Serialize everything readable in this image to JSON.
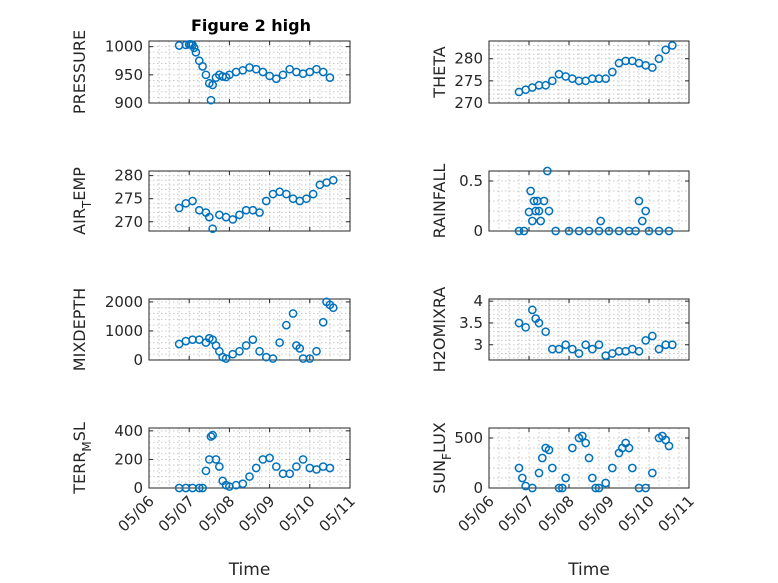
{
  "title": "Figure 2 high",
  "chart_data": [
    {
      "type": "scatter",
      "ylabel": "PRESSURE",
      "ylim": [
        900,
        1010
      ],
      "yticks": [
        900,
        950,
        1000
      ],
      "ytick_labels": [
        "900",
        "950",
        "1000"
      ],
      "x": [
        "05/06 18:00",
        "05/06 22:00",
        "05/07 00:00",
        "05/07 01:00",
        "05/07 02:00",
        "05/07 03:00",
        "05/07 04:00",
        "05/07 06:00",
        "05/07 08:00",
        "05/07 10:00",
        "05/07 12:00",
        "05/07 13:00",
        "05/07 14:00",
        "05/07 16:00",
        "05/07 18:00",
        "05/07 20:00",
        "05/07 22:00",
        "05/08 00:00",
        "05/08 04:00",
        "05/08 08:00",
        "05/08 12:00",
        "05/08 16:00",
        "05/08 20:00",
        "05/09 00:00",
        "05/09 04:00",
        "05/09 08:00",
        "05/09 12:00",
        "05/09 16:00",
        "05/09 20:00",
        "05/10 00:00",
        "05/10 04:00",
        "05/10 08:00",
        "05/10 12:00"
      ],
      "y": [
        1002,
        1003,
        1004,
        1004,
        1003,
        998,
        990,
        975,
        965,
        950,
        935,
        905,
        932,
        945,
        950,
        947,
        946,
        950,
        955,
        958,
        963,
        960,
        955,
        948,
        943,
        950,
        960,
        955,
        952,
        955,
        960,
        955,
        945
      ]
    },
    {
      "type": "scatter",
      "ylabel": "THETA",
      "ylim": [
        270,
        284
      ],
      "yticks": [
        270,
        275,
        280
      ],
      "ytick_labels": [
        "270",
        "275",
        "280"
      ],
      "x": [
        "05/06 18:00",
        "05/06 22:00",
        "05/07 02:00",
        "05/07 06:00",
        "05/07 10:00",
        "05/07 14:00",
        "05/07 18:00",
        "05/07 22:00",
        "05/08 02:00",
        "05/08 06:00",
        "05/08 10:00",
        "05/08 14:00",
        "05/08 18:00",
        "05/08 22:00",
        "05/09 02:00",
        "05/09 06:00",
        "05/09 10:00",
        "05/09 14:00",
        "05/09 18:00",
        "05/09 22:00",
        "05/10 02:00",
        "05/10 06:00",
        "05/10 10:00",
        "05/10 14:00"
      ],
      "y": [
        272.5,
        273,
        273.5,
        274,
        274,
        275,
        276.5,
        276,
        275.5,
        275,
        275,
        275.5,
        275.5,
        275.5,
        277,
        279,
        279.5,
        279.5,
        279,
        278.5,
        278,
        280,
        282,
        283
      ]
    },
    {
      "type": "scatter",
      "ylabel": "AIR_TEMP",
      "ylim": [
        268,
        281
      ],
      "yticks": [
        270,
        275,
        280
      ],
      "ytick_labels": [
        "270",
        "275",
        "280"
      ],
      "x": [
        "05/06 18:00",
        "05/06 22:00",
        "05/07 02:00",
        "05/07 06:00",
        "05/07 10:00",
        "05/07 12:00",
        "05/07 14:00",
        "05/07 18:00",
        "05/07 22:00",
        "05/08 02:00",
        "05/08 06:00",
        "05/08 10:00",
        "05/08 14:00",
        "05/08 18:00",
        "05/08 22:00",
        "05/09 02:00",
        "05/09 06:00",
        "05/09 10:00",
        "05/09 14:00",
        "05/09 18:00",
        "05/09 22:00",
        "05/10 02:00",
        "05/10 06:00",
        "05/10 10:00",
        "05/10 14:00"
      ],
      "y": [
        273,
        274,
        274.5,
        272.5,
        272,
        271,
        268.5,
        271.5,
        271,
        270.5,
        271.5,
        272.5,
        272.5,
        272,
        274.5,
        276,
        276.5,
        276,
        275,
        274.5,
        275,
        276,
        278,
        278.5,
        279
      ]
    },
    {
      "type": "scatter",
      "ylabel": "RAINFALL",
      "ylim": [
        0,
        0.6
      ],
      "yticks": [
        0,
        0.5
      ],
      "ytick_labels": [
        "0",
        "0.5"
      ],
      "x": [
        "05/06 18:00",
        "05/06 21:00",
        "05/07 00:00",
        "05/07 01:00",
        "05/07 02:00",
        "05/07 03:00",
        "05/07 04:00",
        "05/07 05:00",
        "05/07 06:00",
        "05/07 07:00",
        "05/07 09:00",
        "05/07 11:00",
        "05/07 12:00",
        "05/07 16:00",
        "05/08 00:00",
        "05/08 06:00",
        "05/08 12:00",
        "05/08 18:00",
        "05/08 19:00",
        "05/09 00:00",
        "05/09 06:00",
        "05/09 12:00",
        "05/09 16:00",
        "05/09 18:00",
        "05/09 20:00",
        "05/09 22:00",
        "05/10 00:00",
        "05/10 06:00",
        "05/10 12:00"
      ],
      "y": [
        0,
        0,
        0.19,
        0.4,
        0.1,
        0.3,
        0.2,
        0.3,
        0.2,
        0.1,
        0.3,
        0.6,
        0.2,
        0,
        0,
        0,
        0,
        0,
        0.1,
        0,
        0,
        0,
        0,
        0.3,
        0.1,
        0.2,
        0,
        0,
        0
      ]
    },
    {
      "type": "scatter",
      "ylabel": "MIXDEPTH",
      "ylim": [
        0,
        2100
      ],
      "yticks": [
        0,
        1000,
        2000
      ],
      "ytick_labels": [
        "0",
        "1000",
        "2000"
      ],
      "x": [
        "05/06 18:00",
        "05/06 22:00",
        "05/07 02:00",
        "05/07 06:00",
        "05/07 10:00",
        "05/07 12:00",
        "05/07 14:00",
        "05/07 16:00",
        "05/07 18:00",
        "05/07 20:00",
        "05/07 22:00",
        "05/08 02:00",
        "05/08 06:00",
        "05/08 10:00",
        "05/08 14:00",
        "05/08 18:00",
        "05/08 22:00",
        "05/09 02:00",
        "05/09 06:00",
        "05/09 10:00",
        "05/09 14:00",
        "05/09 16:00",
        "05/09 18:00",
        "05/09 20:00",
        "05/10 00:00",
        "05/10 04:00",
        "05/10 08:00",
        "05/10 10:00",
        "05/10 12:00",
        "05/10 14:00"
      ],
      "y": [
        550,
        650,
        700,
        700,
        600,
        750,
        700,
        500,
        300,
        100,
        50,
        200,
        300,
        500,
        700,
        300,
        100,
        50,
        600,
        1200,
        1600,
        500,
        400,
        50,
        50,
        300,
        1300,
        2000,
        1900,
        1800
      ]
    },
    {
      "type": "scatter",
      "ylabel": "H2OMIXRA",
      "ylim": [
        2.65,
        4.05
      ],
      "yticks": [
        3,
        3.5,
        4
      ],
      "ytick_labels": [
        "3",
        "3.5",
        "4"
      ],
      "x": [
        "05/06 18:00",
        "05/06 22:00",
        "05/07 02:00",
        "05/07 04:00",
        "05/07 06:00",
        "05/07 10:00",
        "05/07 14:00",
        "05/07 18:00",
        "05/07 22:00",
        "05/08 02:00",
        "05/08 06:00",
        "05/08 10:00",
        "05/08 14:00",
        "05/08 18:00",
        "05/08 22:00",
        "05/09 02:00",
        "05/09 06:00",
        "05/09 10:00",
        "05/09 14:00",
        "05/09 18:00",
        "05/09 22:00",
        "05/10 02:00",
        "05/10 06:00",
        "05/10 10:00",
        "05/10 14:00"
      ],
      "y": [
        3.5,
        3.4,
        3.8,
        3.6,
        3.5,
        3.3,
        2.9,
        2.9,
        3.0,
        2.9,
        2.8,
        3.0,
        2.9,
        3.0,
        2.75,
        2.8,
        2.85,
        2.85,
        2.9,
        2.85,
        3.1,
        3.2,
        2.9,
        3.0,
        3.0
      ]
    },
    {
      "type": "scatter",
      "ylabel": "TERR_MSL",
      "ylim": [
        0,
        420
      ],
      "yticks": [
        0,
        200,
        400
      ],
      "ytick_labels": [
        "0",
        "200",
        "400"
      ],
      "x": [
        "05/06 18:00",
        "05/06 22:00",
        "05/07 02:00",
        "05/07 06:00",
        "05/07 08:00",
        "05/07 10:00",
        "05/07 12:00",
        "05/07 13:00",
        "05/07 14:00",
        "05/07 16:00",
        "05/07 18:00",
        "05/07 20:00",
        "05/07 22:00",
        "05/08 00:00",
        "05/08 04:00",
        "05/08 08:00",
        "05/08 12:00",
        "05/08 16:00",
        "05/08 20:00",
        "05/09 00:00",
        "05/09 04:00",
        "05/09 08:00",
        "05/09 12:00",
        "05/09 16:00",
        "05/09 20:00",
        "05/10 00:00",
        "05/10 04:00",
        "05/10 08:00",
        "05/10 12:00"
      ],
      "y": [
        0,
        0,
        0,
        0,
        0,
        120,
        200,
        360,
        370,
        200,
        150,
        50,
        20,
        10,
        20,
        30,
        80,
        140,
        200,
        210,
        150,
        100,
        100,
        150,
        200,
        140,
        130,
        150,
        140
      ]
    },
    {
      "type": "scatter",
      "ylabel": "SUN_FLUX",
      "ylim": [
        0,
        600
      ],
      "yticks": [
        0,
        500
      ],
      "ytick_labels": [
        "0",
        "500"
      ],
      "x": [
        "05/06 18:00",
        "05/06 20:00",
        "05/06 22:00",
        "05/07 02:00",
        "05/07 06:00",
        "05/07 08:00",
        "05/07 10:00",
        "05/07 12:00",
        "05/07 14:00",
        "05/07 18:00",
        "05/07 20:00",
        "05/07 22:00",
        "05/08 02:00",
        "05/08 06:00",
        "05/08 08:00",
        "05/08 10:00",
        "05/08 12:00",
        "05/08 14:00",
        "05/08 16:00",
        "05/08 18:00",
        "05/08 22:00",
        "05/09 02:00",
        "05/09 06:00",
        "05/09 08:00",
        "05/09 10:00",
        "05/09 12:00",
        "05/09 14:00",
        "05/09 18:00",
        "05/09 22:00",
        "05/10 02:00",
        "05/10 06:00",
        "05/10 08:00",
        "05/10 10:00",
        "05/10 12:00"
      ],
      "y": [
        200,
        100,
        20,
        0,
        150,
        300,
        400,
        380,
        200,
        0,
        0,
        100,
        400,
        500,
        520,
        450,
        300,
        100,
        0,
        0,
        50,
        200,
        350,
        400,
        450,
        400,
        200,
        0,
        0,
        150,
        500,
        520,
        480,
        420
      ]
    }
  ],
  "xlim": [
    "05/06 00:00",
    "05/11 00:00"
  ],
  "xtick_labels": [
    "05/06",
    "05/07",
    "05/08",
    "05/09",
    "05/10",
    "05/11"
  ],
  "xlabel": "Time"
}
